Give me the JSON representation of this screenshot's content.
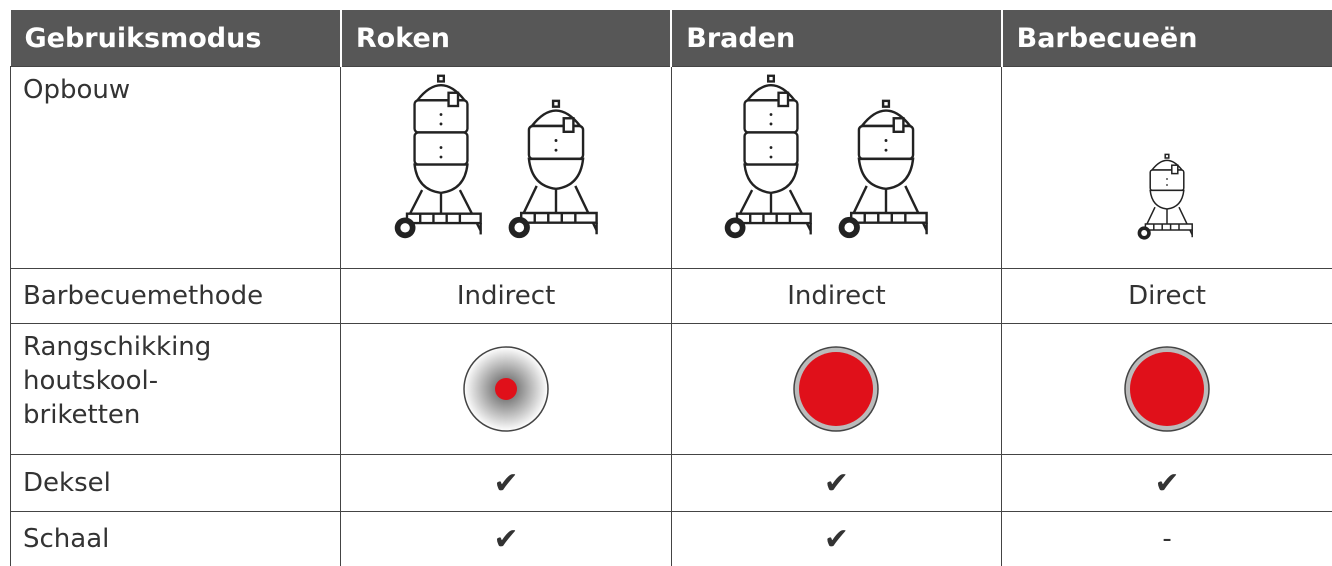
{
  "table": {
    "header": [
      "Gebruiksmodus",
      "Roken",
      "Braden",
      "Barbecueën"
    ],
    "rows": [
      [
        "Opbouw"
      ],
      [
        "Barbecuemethode",
        "Indirect",
        "Indirect",
        "Direct"
      ],
      [
        "Rangschikking houtskool-\nbriketten"
      ],
      [
        "Deksel",
        "✔",
        "✔",
        "✔"
      ],
      [
        "Schaal",
        "✔",
        "✔",
        "-"
      ]
    ]
  }
}
